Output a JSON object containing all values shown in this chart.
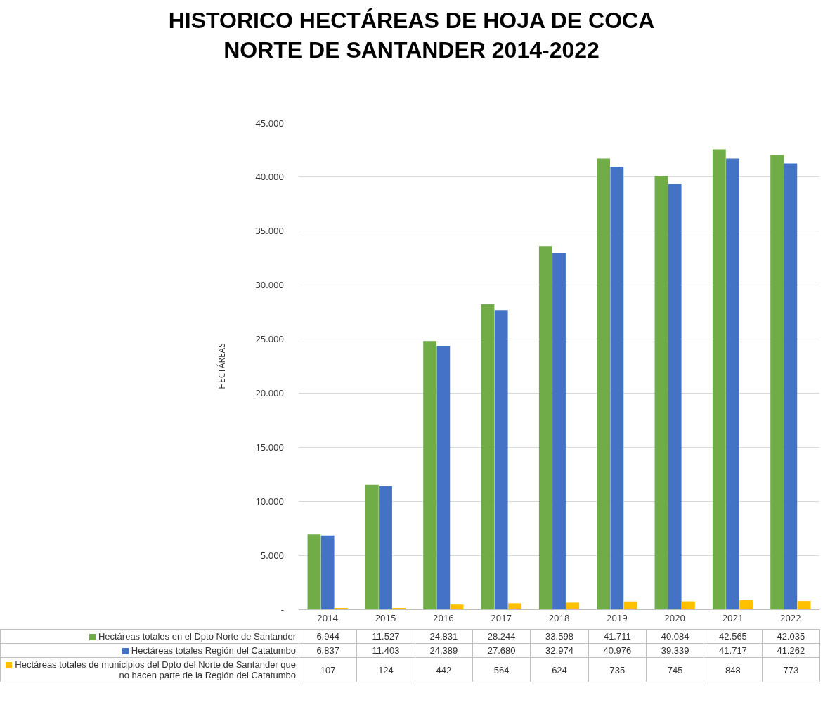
{
  "chart_data": {
    "type": "bar",
    "title": "HISTORICO HECTÁREAS DE HOJA DE COCA\nNORTE DE SANTANDER 2014-2022",
    "ylabel": "HECTÁREAS",
    "categories": [
      "2014",
      "2015",
      "2016",
      "2017",
      "2018",
      "2019",
      "2020",
      "2021",
      "2022"
    ],
    "series": [
      {
        "name": "Hectáreas totales en el Dpto Norte de Santander",
        "color": "#70ad47",
        "values": [
          6944,
          11527,
          24831,
          28244,
          33598,
          41711,
          40084,
          42565,
          42035
        ],
        "value_labels": [
          "6.944",
          "11.527",
          "24.831",
          "28.244",
          "33.598",
          "41.711",
          "40.084",
          "42.565",
          "42.035"
        ]
      },
      {
        "name": "Hectáreas totales Región del Catatumbo",
        "color": "#4472c4",
        "values": [
          6837,
          11403,
          24389,
          27680,
          32974,
          40976,
          39339,
          41717,
          41262
        ],
        "value_labels": [
          "6.837",
          "11.403",
          "24.389",
          "27.680",
          "32.974",
          "40.976",
          "39.339",
          "41.717",
          "41.262"
        ]
      },
      {
        "name": "Hectáreas totales de municipios del Dpto del Norte de Santander que no hacen parte de la Región del Catatumbo",
        "color": "#ffc000",
        "values": [
          107,
          124,
          442,
          564,
          624,
          735,
          745,
          848,
          773
        ],
        "value_labels": [
          "107",
          "124",
          "442",
          "564",
          "624",
          "735",
          "745",
          "848",
          "773"
        ]
      }
    ],
    "ylim": [
      0,
      45000
    ],
    "yticks": [
      {
        "value": 0,
        "label": "-"
      },
      {
        "value": 5000,
        "label": "5.000"
      },
      {
        "value": 10000,
        "label": "10.000"
      },
      {
        "value": 15000,
        "label": "15.000"
      },
      {
        "value": 20000,
        "label": "20.000"
      },
      {
        "value": 25000,
        "label": "25.000"
      },
      {
        "value": 30000,
        "label": "30.000"
      },
      {
        "value": 35000,
        "label": "35.000"
      },
      {
        "value": 40000,
        "label": "40.000"
      },
      {
        "value": 45000,
        "label": "45.000"
      }
    ],
    "grid": "y",
    "legend": "bottom"
  }
}
